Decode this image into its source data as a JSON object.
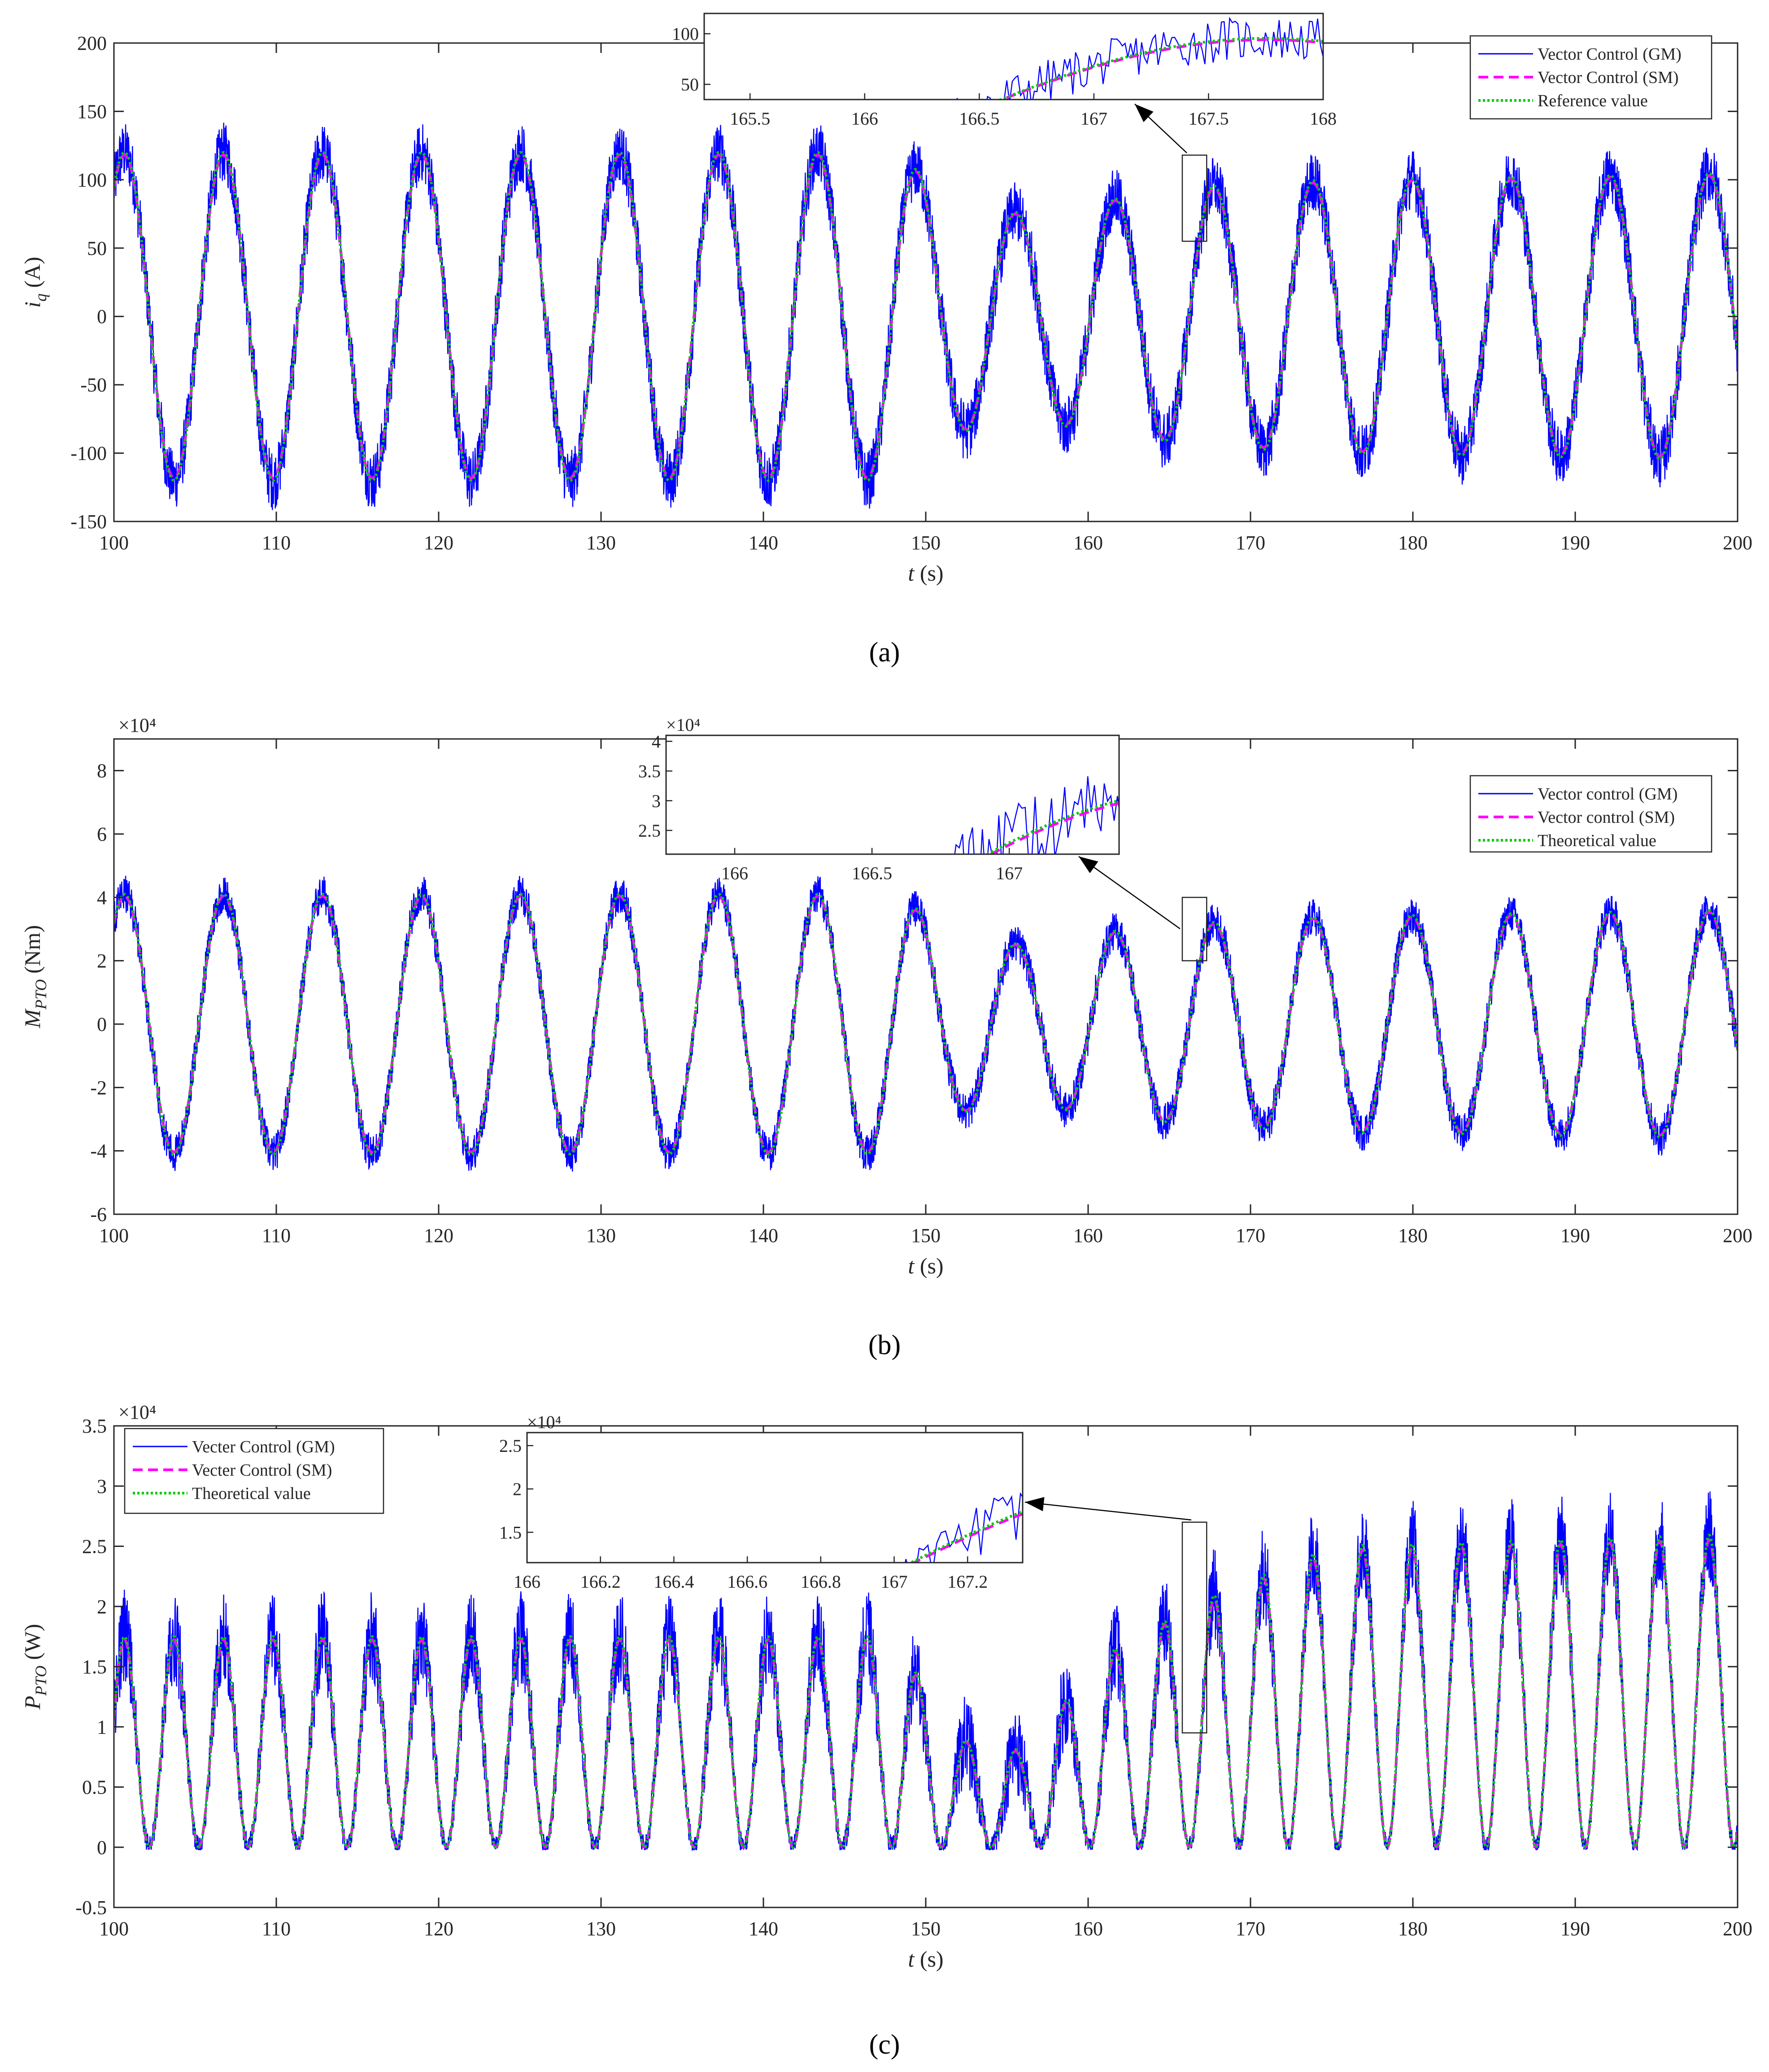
{
  "panels": [
    {
      "panel_label": "(a)",
      "xlabel_var": "t",
      "xlabel_unit": " (s)",
      "ylabel_var": "i",
      "ylabel_sub": "q",
      "ylabel_unit": " (A)",
      "exponent": "",
      "legend": [
        {
          "label": "Vector Control (GM)",
          "color": "#0000ff",
          "style": "solid"
        },
        {
          "label": "Vector Control (SM)",
          "color": "#ff00ff",
          "style": "dashed"
        },
        {
          "label": "Reference value",
          "color": "#00cc00",
          "style": "dotted"
        }
      ],
      "inset": {
        "xticks": [
          "165.5",
          "166",
          "166.5",
          "167",
          "167.5",
          "168"
        ],
        "yticks": [
          "50",
          "100"
        ],
        "exponent": ""
      }
    },
    {
      "panel_label": "(b)",
      "xlabel_var": "t",
      "xlabel_unit": " (s)",
      "ylabel_var": "M",
      "ylabel_sub": "PTO",
      "ylabel_unit": " (Nm)",
      "exponent": "×10⁴",
      "legend": [
        {
          "label": "Vector control (GM)",
          "color": "#0000ff",
          "style": "solid"
        },
        {
          "label": "Vector control (SM)",
          "color": "#ff00ff",
          "style": "dashed"
        },
        {
          "label": "Theoretical value",
          "color": "#00cc00",
          "style": "dotted"
        }
      ],
      "inset": {
        "xticks": [
          "166",
          "166.5",
          "167"
        ],
        "yticks": [
          "2.5",
          "3",
          "3.5",
          "4"
        ],
        "exponent": "×10⁴"
      }
    },
    {
      "panel_label": "(c)",
      "xlabel_var": "t",
      "xlabel_unit": " (s)",
      "ylabel_var": "P",
      "ylabel_sub": "PTO",
      "ylabel_unit": " (W)",
      "exponent": "×10⁴",
      "legend": [
        {
          "label": "Vecter Control (GM)",
          "color": "#0000ff",
          "style": "solid"
        },
        {
          "label": "Vecter Control (SM)",
          "color": "#ff00ff",
          "style": "dashed"
        },
        {
          "label": "Theoretical value",
          "color": "#00cc00",
          "style": "dotted"
        }
      ],
      "inset": {
        "xticks": [
          "166",
          "166.2",
          "166.4",
          "166.6",
          "166.8",
          "167",
          "167.2"
        ],
        "yticks": [
          "1.5",
          "2",
          "2.5"
        ],
        "exponent": "×10⁴"
      }
    }
  ],
  "chart_data": [
    {
      "type": "line",
      "title": "",
      "xlabel": "t (s)",
      "ylabel": "i_q (A)",
      "xlim": [
        100,
        200
      ],
      "ylim": [
        -150,
        200
      ],
      "xticks": [
        100,
        110,
        120,
        130,
        140,
        150,
        160,
        170,
        180,
        190,
        200
      ],
      "yticks": [
        -150,
        -100,
        -50,
        0,
        50,
        100,
        150,
        200
      ],
      "period_s": 6.1,
      "phase_offset_s": 100.65,
      "amplitude_envelope": {
        "t": [
          100,
          148,
          152,
          156,
          161,
          167,
          175,
          200
        ],
        "amp": [
          120,
          120,
          85,
          75,
          85,
          95,
          100,
          105
        ]
      },
      "noise_amplitude": 22,
      "series": [
        {
          "name": "Vector Control (GM)",
          "style": "noisy"
        },
        {
          "name": "Vector Control (SM)",
          "style": "smooth"
        },
        {
          "name": "Reference value",
          "style": "smooth"
        }
      ],
      "legend_position": "top-right",
      "inset": {
        "xlim": [
          165.3,
          168
        ],
        "ylim": [
          35,
          120
        ],
        "zoom_box": {
          "x": [
            165.8,
            167.3
          ],
          "y": [
            55,
            118
          ]
        }
      }
    },
    {
      "type": "line",
      "title": "",
      "xlabel": "t (s)",
      "ylabel": "M_PTO (Nm)",
      "y_multiplier": 10000,
      "xlim": [
        100,
        200
      ],
      "ylim": [
        -6,
        9
      ],
      "xticks": [
        100,
        110,
        120,
        130,
        140,
        150,
        160,
        170,
        180,
        190,
        200
      ],
      "yticks": [
        -6,
        -4,
        -2,
        0,
        2,
        4,
        6,
        8
      ],
      "period_s": 6.1,
      "phase_offset_s": 100.65,
      "amplitude_envelope": {
        "t": [
          100,
          148,
          152,
          156,
          161,
          167,
          175,
          200
        ],
        "amp": [
          4.1,
          4.1,
          2.8,
          2.5,
          2.9,
          3.2,
          3.4,
          3.6
        ]
      },
      "noise_amplitude": 0.6,
      "series": [
        {
          "name": "Vector control (GM)",
          "style": "noisy"
        },
        {
          "name": "Vector control (SM)",
          "style": "smooth"
        },
        {
          "name": "Theoretical value",
          "style": "smooth"
        }
      ],
      "legend_position": "top-right",
      "inset": {
        "xlim": [
          165.75,
          167.4
        ],
        "ylim": [
          2.1,
          4.1
        ],
        "zoom_box": {
          "x": [
            165.8,
            167.3
          ],
          "y": [
            2.0,
            4.0
          ]
        }
      }
    },
    {
      "type": "line",
      "title": "",
      "xlabel": "t (s)",
      "ylabel": "P_PTO (W)",
      "y_multiplier": 10000,
      "xlim": [
        100,
        200
      ],
      "ylim": [
        -0.5,
        3.5
      ],
      "xticks": [
        100,
        110,
        120,
        130,
        140,
        150,
        160,
        170,
        180,
        190,
        200
      ],
      "yticks": [
        -0.5,
        0,
        0.5,
        1,
        1.5,
        2,
        2.5,
        3,
        3.5
      ],
      "period_s": 3.05,
      "phase_offset_s": 100.65,
      "peak_envelope": {
        "t": [
          100,
          148,
          152,
          156,
          161,
          167,
          175,
          200
        ],
        "peak": [
          1.75,
          1.75,
          0.9,
          0.8,
          1.6,
          2.05,
          2.5,
          2.6
        ]
      },
      "noise_amplitude": 0.3,
      "series": [
        {
          "name": "Vecter Control (GM)",
          "style": "noisy"
        },
        {
          "name": "Vecter Control (SM)",
          "style": "smooth"
        },
        {
          "name": "Theoretical value",
          "style": "smooth"
        }
      ],
      "legend_position": "top-left",
      "inset": {
        "xlim": [
          166,
          167.35
        ],
        "ylim": [
          1.15,
          2.65
        ],
        "zoom_box": {
          "x": [
            165.8,
            167.3
          ],
          "y": [
            0.95,
            2.7
          ]
        }
      }
    }
  ]
}
